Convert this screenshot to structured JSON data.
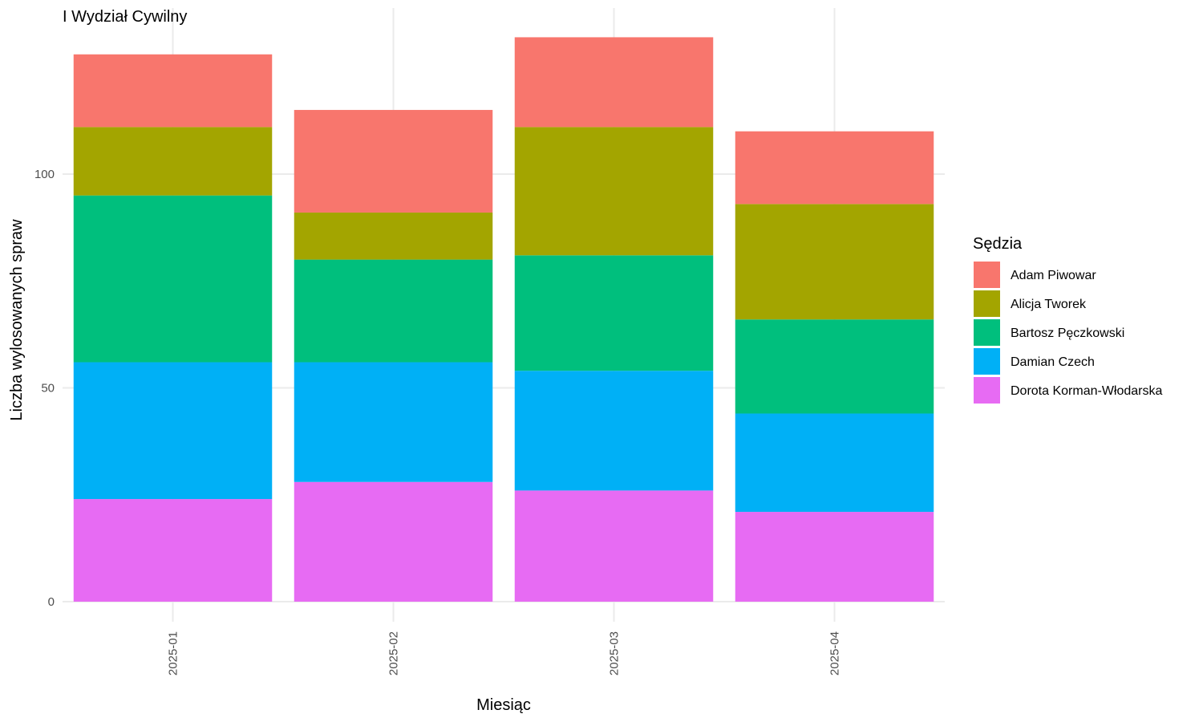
{
  "chart_data": {
    "type": "bar",
    "stacked": true,
    "title": "I Wydział Cywilny",
    "xlabel": "Miesiąc",
    "ylabel": "Liczba wylosowanych spraw",
    "categories": [
      "2025-01",
      "2025-02",
      "2025-03",
      "2025-04"
    ],
    "yticks": [
      0,
      50,
      100
    ],
    "ylim": [
      0,
      135
    ],
    "grid": true,
    "legend": {
      "title": "Sędzia",
      "position": "right"
    },
    "series": [
      {
        "name": "Dorota Korman-Włodarska",
        "color": "#E76BF3",
        "values": [
          24,
          28,
          26,
          21
        ]
      },
      {
        "name": "Damian Czech",
        "color": "#00B0F6",
        "values": [
          32,
          28,
          28,
          23
        ]
      },
      {
        "name": "Bartosz Pęczkowski",
        "color": "#00BF7D",
        "values": [
          39,
          24,
          27,
          22
        ]
      },
      {
        "name": "Alicja Tworek",
        "color": "#A3A500",
        "values": [
          16,
          11,
          30,
          27
        ]
      },
      {
        "name": "Adam Piwowar",
        "color": "#F8766D",
        "values": [
          17,
          24,
          21,
          17
        ]
      }
    ]
  }
}
